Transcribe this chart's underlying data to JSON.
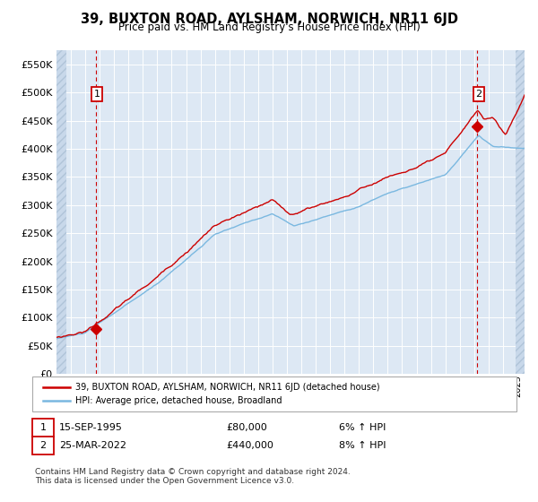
{
  "title": "39, BUXTON ROAD, AYLSHAM, NORWICH, NR11 6JD",
  "subtitle": "Price paid vs. HM Land Registry's House Price Index (HPI)",
  "legend_line1": "39, BUXTON ROAD, AYLSHAM, NORWICH, NR11 6JD (detached house)",
  "legend_line2": "HPI: Average price, detached house, Broadland",
  "annotation1_date": "15-SEP-1995",
  "annotation1_price": "£80,000",
  "annotation1_hpi": "6% ↑ HPI",
  "annotation2_date": "25-MAR-2022",
  "annotation2_price": "£440,000",
  "annotation2_hpi": "8% ↑ HPI",
  "footnote_line1": "Contains HM Land Registry data © Crown copyright and database right 2024.",
  "footnote_line2": "This data is licensed under the Open Government Licence v3.0.",
  "hpi_color": "#7ab8e0",
  "price_color": "#cc0000",
  "marker_color": "#cc0000",
  "vline_color": "#cc0000",
  "bg_color": "#dde8f4",
  "hatch_color": "#c8d8ea",
  "grid_color": "#ffffff",
  "legend_border_color": "#aaaaaa",
  "ylim": [
    0,
    575000
  ],
  "yticks": [
    0,
    50000,
    100000,
    150000,
    200000,
    250000,
    300000,
    350000,
    400000,
    450000,
    500000,
    550000
  ],
  "xlim_start": 1993.0,
  "xlim_end": 2025.5,
  "sale1_x": 1995.71,
  "sale1_y": 80000,
  "sale2_x": 2022.23,
  "sale2_y": 440000,
  "hatch_left_end": 1993.7,
  "hatch_right_start": 2024.85
}
